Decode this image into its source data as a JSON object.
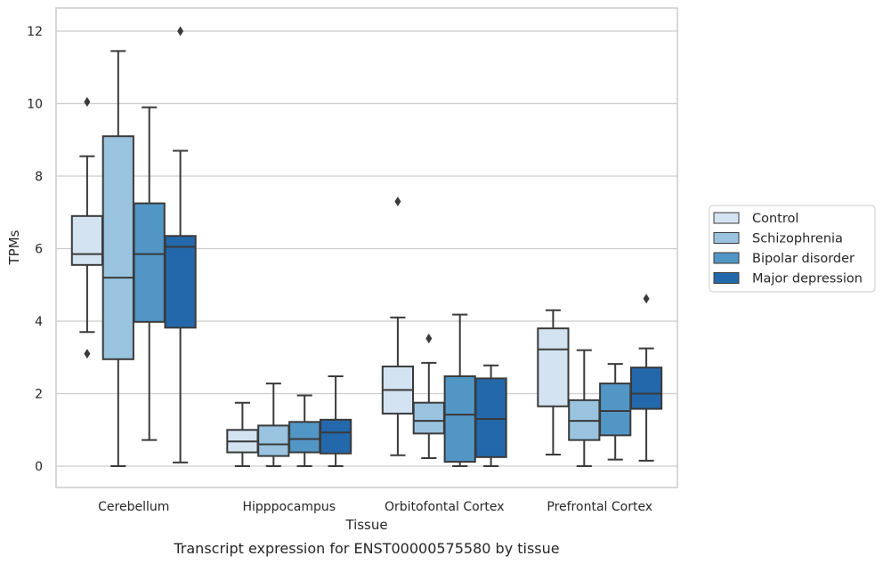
{
  "chart_data": {
    "type": "box",
    "title": "",
    "caption": "Transcript expression for ENST00000575580 by tissue",
    "xlabel": "Tissue",
    "ylabel": "TPMs",
    "ylim": [
      -0.6,
      12.6
    ],
    "yticks": [
      0,
      2,
      4,
      6,
      8,
      10,
      12
    ],
    "grid": "horizontal",
    "legend_position": "right",
    "categories": [
      "Cerebellum",
      "Hipppocampus",
      "Orbitofontal Cortex",
      "Prefrontal Cortex"
    ],
    "series": [
      {
        "name": "Control",
        "color": "#d3e3f2",
        "boxes": [
          {
            "whislo": 3.7,
            "q1": 5.55,
            "med": 5.85,
            "q3": 6.9,
            "whishi": 8.55,
            "fliers": [
              10.05,
              3.1
            ]
          },
          {
            "whislo": 0.0,
            "q1": 0.38,
            "med": 0.68,
            "q3": 1.0,
            "whishi": 1.75,
            "fliers": []
          },
          {
            "whislo": 0.3,
            "q1": 1.45,
            "med": 2.1,
            "q3": 2.75,
            "whishi": 4.1,
            "fliers": [
              7.3
            ]
          },
          {
            "whislo": 0.32,
            "q1": 1.65,
            "med": 3.22,
            "q3": 3.8,
            "whishi": 4.3,
            "fliers": []
          }
        ]
      },
      {
        "name": "Schizophrenia",
        "color": "#9ac3df",
        "boxes": [
          {
            "whislo": 0.0,
            "q1": 2.95,
            "med": 5.2,
            "q3": 9.1,
            "whishi": 11.45,
            "fliers": []
          },
          {
            "whislo": 0.0,
            "q1": 0.28,
            "med": 0.6,
            "q3": 1.12,
            "whishi": 2.28,
            "fliers": []
          },
          {
            "whislo": 0.22,
            "q1": 0.9,
            "med": 1.25,
            "q3": 1.75,
            "whishi": 2.85,
            "fliers": [
              3.52
            ]
          },
          {
            "whislo": 0.0,
            "q1": 0.72,
            "med": 1.25,
            "q3": 1.82,
            "whishi": 3.2,
            "fliers": []
          }
        ]
      },
      {
        "name": "Bipolar disorder",
        "color": "#5296c6",
        "boxes": [
          {
            "whislo": 0.72,
            "q1": 3.98,
            "med": 5.85,
            "q3": 7.25,
            "whishi": 9.9,
            "fliers": []
          },
          {
            "whislo": 0.0,
            "q1": 0.38,
            "med": 0.75,
            "q3": 1.22,
            "whishi": 1.95,
            "fliers": []
          },
          {
            "whislo": 0.0,
            "q1": 0.12,
            "med": 1.42,
            "q3": 2.48,
            "whishi": 4.18,
            "fliers": []
          },
          {
            "whislo": 0.18,
            "q1": 0.85,
            "med": 1.52,
            "q3": 2.28,
            "whishi": 2.82,
            "fliers": []
          }
        ]
      },
      {
        "name": "Major depression",
        "color": "#2368aa",
        "boxes": [
          {
            "whislo": 0.1,
            "q1": 3.82,
            "med": 6.05,
            "q3": 6.35,
            "whishi": 8.7,
            "fliers": [
              12.0
            ]
          },
          {
            "whislo": 0.0,
            "q1": 0.35,
            "med": 0.93,
            "q3": 1.28,
            "whishi": 2.48,
            "fliers": []
          },
          {
            "whislo": 0.0,
            "q1": 0.25,
            "med": 1.3,
            "q3": 2.42,
            "whishi": 2.78,
            "fliers": []
          },
          {
            "whislo": 0.15,
            "q1": 1.58,
            "med": 2.0,
            "q3": 2.72,
            "whishi": 3.25,
            "fliers": [
              4.62
            ]
          }
        ]
      }
    ]
  }
}
